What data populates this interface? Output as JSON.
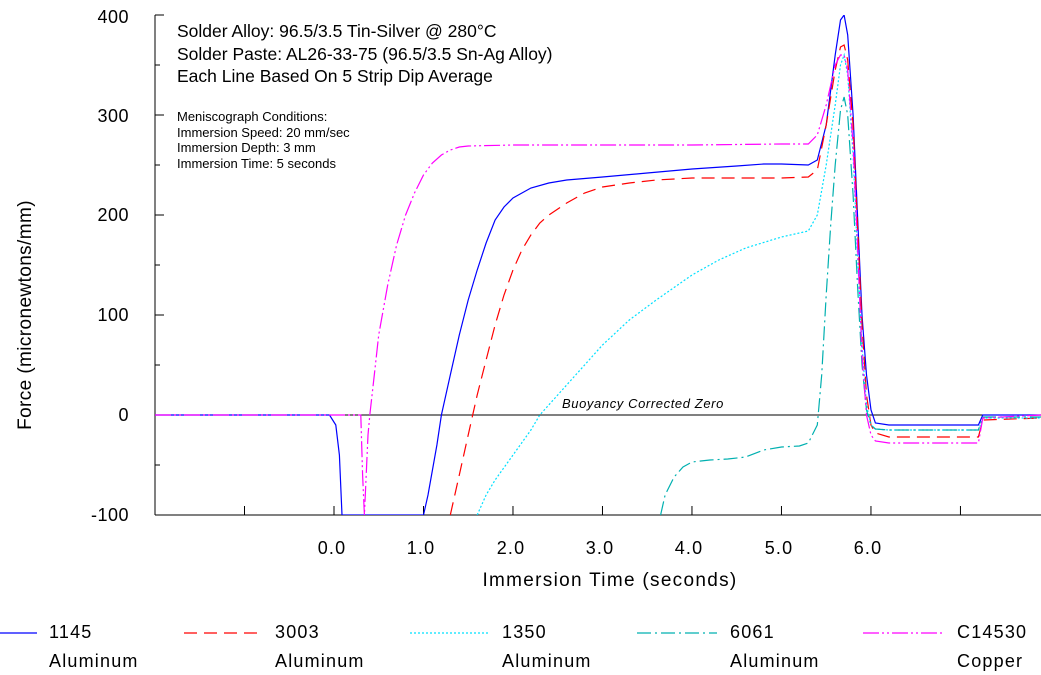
{
  "chart_data": {
    "type": "line",
    "title_lines": [
      "Solder Alloy: 96.5/3.5 Tin-Silver @ 280°C",
      "Solder Paste: AL26-33-75 (96.5/3.5 Sn-Ag Alloy)",
      "Each Line Based On 5 Strip Dip Average"
    ],
    "conditions": [
      "Meniscograph Conditions:",
      "Immersion Speed: 20 mm/sec",
      "Immersion Depth: 3 mm",
      "Immersion Time: 5 seconds"
    ],
    "xlabel": "Immersion Time (seconds)",
    "ylabel": "Force (micronewtons/mm)",
    "xlim": [
      -2.0,
      7.9
    ],
    "ylim": [
      -100,
      400
    ],
    "x_ticks": [
      "0.0",
      "1.0",
      "2.0",
      "3.0",
      "4.0",
      "5.0",
      "6.0"
    ],
    "y_ticks": [
      "400",
      "300",
      "200",
      "100",
      "0",
      "-100"
    ],
    "annotation": "Buoyancy Corrected Zero",
    "grid": false,
    "legend_position": "bottom",
    "series": [
      {
        "name_line1": "1145",
        "name_line2": "Aluminum",
        "color": "#0000ff",
        "dash": "solid",
        "points": [
          [
            -2.0,
            0
          ],
          [
            -0.05,
            0
          ],
          [
            0.02,
            -10
          ],
          [
            0.06,
            -40
          ],
          [
            0.09,
            -100
          ],
          [
            1.0,
            -100
          ],
          [
            1.05,
            -80
          ],
          [
            1.15,
            -30
          ],
          [
            1.2,
            0
          ],
          [
            1.3,
            40
          ],
          [
            1.4,
            80
          ],
          [
            1.5,
            115
          ],
          [
            1.6,
            145
          ],
          [
            1.7,
            172
          ],
          [
            1.8,
            195
          ],
          [
            1.9,
            208
          ],
          [
            2.0,
            217
          ],
          [
            2.2,
            227
          ],
          [
            2.4,
            232
          ],
          [
            2.6,
            235
          ],
          [
            3.0,
            238
          ],
          [
            3.5,
            242
          ],
          [
            4.0,
            246
          ],
          [
            4.5,
            249
          ],
          [
            4.8,
            251
          ],
          [
            5.0,
            251
          ],
          [
            5.3,
            250
          ],
          [
            5.4,
            255
          ],
          [
            5.5,
            290
          ],
          [
            5.6,
            360
          ],
          [
            5.66,
            395
          ],
          [
            5.7,
            400
          ],
          [
            5.74,
            380
          ],
          [
            5.8,
            300
          ],
          [
            5.85,
            200
          ],
          [
            5.9,
            100
          ],
          [
            5.95,
            40
          ],
          [
            6.0,
            5
          ],
          [
            6.05,
            -8
          ],
          [
            6.2,
            -10
          ],
          [
            7.2,
            -10
          ],
          [
            7.25,
            0
          ],
          [
            7.9,
            0
          ]
        ]
      },
      {
        "name_line1": "3003",
        "name_line2": "Aluminum",
        "color": "#ff0000",
        "dash": "long-dash",
        "points": [
          [
            1.3,
            -100
          ],
          [
            1.4,
            -60
          ],
          [
            1.5,
            -20
          ],
          [
            1.6,
            20
          ],
          [
            1.7,
            55
          ],
          [
            1.8,
            90
          ],
          [
            1.9,
            120
          ],
          [
            2.0,
            145
          ],
          [
            2.1,
            165
          ],
          [
            2.2,
            180
          ],
          [
            2.3,
            192
          ],
          [
            2.4,
            200
          ],
          [
            2.6,
            212
          ],
          [
            2.8,
            222
          ],
          [
            3.0,
            228
          ],
          [
            3.3,
            232
          ],
          [
            3.6,
            235
          ],
          [
            4.0,
            237
          ],
          [
            4.5,
            237
          ],
          [
            5.0,
            237
          ],
          [
            5.3,
            238
          ],
          [
            5.4,
            245
          ],
          [
            5.5,
            290
          ],
          [
            5.6,
            345
          ],
          [
            5.66,
            368
          ],
          [
            5.7,
            370
          ],
          [
            5.74,
            355
          ],
          [
            5.8,
            290
          ],
          [
            5.85,
            190
          ],
          [
            5.9,
            90
          ],
          [
            5.95,
            20
          ],
          [
            6.0,
            -10
          ],
          [
            6.05,
            -18
          ],
          [
            6.2,
            -22
          ],
          [
            7.2,
            -22
          ],
          [
            7.25,
            -5
          ],
          [
            7.9,
            -3
          ]
        ]
      },
      {
        "name_line1": "1350",
        "name_line2": "Aluminum",
        "color": "#00e0ff",
        "dash": "dotted",
        "points": [
          [
            1.6,
            -100
          ],
          [
            1.7,
            -80
          ],
          [
            1.8,
            -65
          ],
          [
            2.0,
            -40
          ],
          [
            2.2,
            -15
          ],
          [
            2.3,
            0
          ],
          [
            2.5,
            20
          ],
          [
            2.8,
            50
          ],
          [
            3.0,
            70
          ],
          [
            3.3,
            95
          ],
          [
            3.6,
            115
          ],
          [
            4.0,
            140
          ],
          [
            4.3,
            155
          ],
          [
            4.6,
            167
          ],
          [
            5.0,
            178
          ],
          [
            5.3,
            184
          ],
          [
            5.4,
            200
          ],
          [
            5.5,
            250
          ],
          [
            5.6,
            310
          ],
          [
            5.66,
            350
          ],
          [
            5.7,
            360
          ],
          [
            5.74,
            340
          ],
          [
            5.8,
            260
          ],
          [
            5.85,
            160
          ],
          [
            5.9,
            70
          ],
          [
            5.95,
            10
          ],
          [
            6.0,
            -10
          ],
          [
            6.05,
            -14
          ],
          [
            6.2,
            -15
          ],
          [
            7.2,
            -15
          ],
          [
            7.25,
            -3
          ],
          [
            7.9,
            -3
          ]
        ]
      },
      {
        "name_line1": "6061",
        "name_line2": "Aluminum",
        "color": "#00b0b0",
        "dash": "dash-dot",
        "points": [
          [
            3.65,
            -100
          ],
          [
            3.7,
            -80
          ],
          [
            3.8,
            -62
          ],
          [
            3.9,
            -52
          ],
          [
            4.0,
            -47
          ],
          [
            4.2,
            -45
          ],
          [
            4.4,
            -44
          ],
          [
            4.6,
            -42
          ],
          [
            4.8,
            -35
          ],
          [
            5.0,
            -32
          ],
          [
            5.2,
            -31
          ],
          [
            5.3,
            -28
          ],
          [
            5.4,
            -10
          ],
          [
            5.45,
            40
          ],
          [
            5.5,
            120
          ],
          [
            5.55,
            190
          ],
          [
            5.6,
            250
          ],
          [
            5.66,
            305
          ],
          [
            5.7,
            318
          ],
          [
            5.74,
            300
          ],
          [
            5.8,
            220
          ],
          [
            5.85,
            130
          ],
          [
            5.9,
            50
          ],
          [
            5.95,
            5
          ],
          [
            6.0,
            -10
          ],
          [
            6.05,
            -14
          ],
          [
            6.2,
            -15
          ],
          [
            7.2,
            -15
          ],
          [
            7.25,
            -2
          ],
          [
            7.9,
            -2
          ]
        ]
      },
      {
        "name_line1": "C14530",
        "name_line2": "Copper",
        "color": "#ff00ff",
        "dash": "dash-dot-dot",
        "points": [
          [
            -2.0,
            0
          ],
          [
            0.3,
            0
          ],
          [
            0.32,
            -60
          ],
          [
            0.34,
            -100
          ],
          [
            0.36,
            -60
          ],
          [
            0.38,
            -20
          ],
          [
            0.4,
            0
          ],
          [
            0.45,
            40
          ],
          [
            0.5,
            80
          ],
          [
            0.6,
            130
          ],
          [
            0.7,
            170
          ],
          [
            0.8,
            200
          ],
          [
            0.9,
            222
          ],
          [
            1.0,
            240
          ],
          [
            1.1,
            252
          ],
          [
            1.2,
            260
          ],
          [
            1.3,
            265
          ],
          [
            1.4,
            268
          ],
          [
            1.5,
            269
          ],
          [
            2.0,
            270
          ],
          [
            3.0,
            270
          ],
          [
            4.0,
            270
          ],
          [
            5.0,
            271
          ],
          [
            5.3,
            271
          ],
          [
            5.4,
            280
          ],
          [
            5.5,
            310
          ],
          [
            5.6,
            350
          ],
          [
            5.66,
            360
          ],
          [
            5.7,
            360
          ],
          [
            5.74,
            345
          ],
          [
            5.8,
            270
          ],
          [
            5.85,
            170
          ],
          [
            5.9,
            60
          ],
          [
            5.95,
            0
          ],
          [
            6.0,
            -20
          ],
          [
            6.05,
            -26
          ],
          [
            6.2,
            -28
          ],
          [
            7.2,
            -28
          ],
          [
            7.25,
            -3
          ],
          [
            7.9,
            0
          ]
        ]
      }
    ]
  }
}
